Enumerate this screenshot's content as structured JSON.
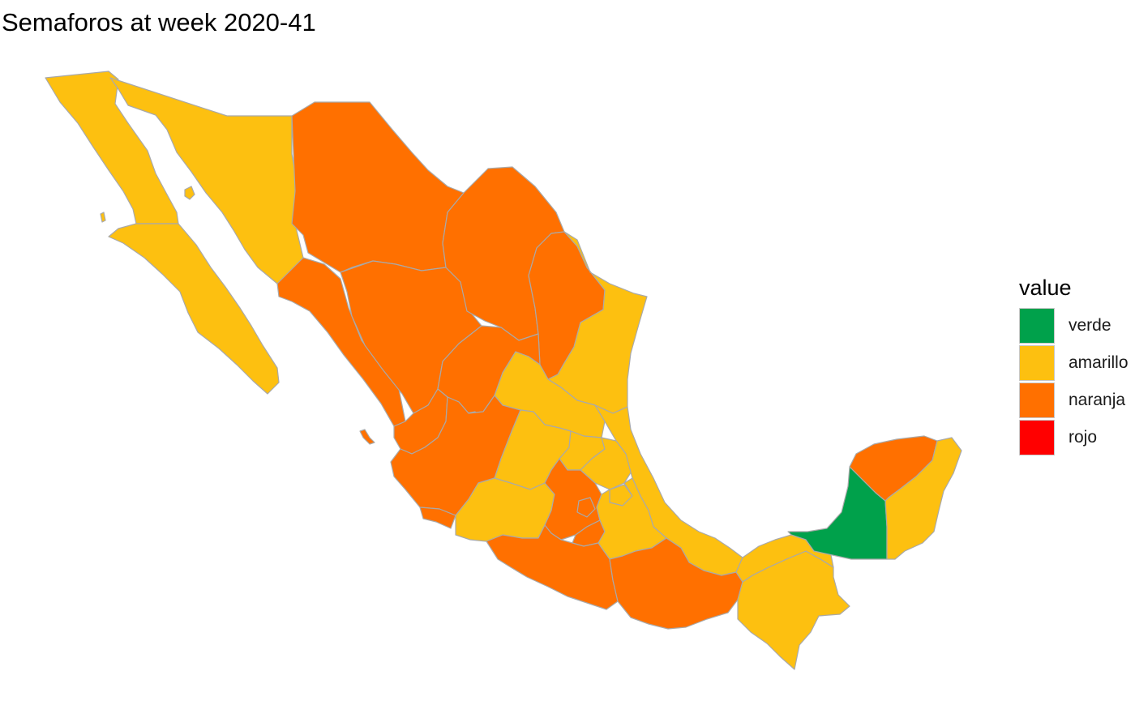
{
  "title": "Semaforos at week 2020-41",
  "legend": {
    "title": "value",
    "items": [
      {
        "key": "verde",
        "label": "verde",
        "color": "#00A14B"
      },
      {
        "key": "amarillo",
        "label": "amarillo",
        "color": "#FDC010"
      },
      {
        "key": "naranja",
        "label": "naranja",
        "color": "#FF7000"
      },
      {
        "key": "rojo",
        "label": "rojo",
        "color": "#FF0000"
      }
    ]
  },
  "states": [
    {
      "name": "Baja California",
      "value": "amarillo"
    },
    {
      "name": "Baja California Sur",
      "value": "amarillo"
    },
    {
      "name": "Sonora",
      "value": "amarillo"
    },
    {
      "name": "Chihuahua",
      "value": "naranja"
    },
    {
      "name": "Coahuila",
      "value": "naranja"
    },
    {
      "name": "Nuevo León",
      "value": "naranja"
    },
    {
      "name": "Tamaulipas",
      "value": "amarillo"
    },
    {
      "name": "Sinaloa",
      "value": "naranja"
    },
    {
      "name": "Durango",
      "value": "naranja"
    },
    {
      "name": "Zacatecas",
      "value": "naranja"
    },
    {
      "name": "Nayarit",
      "value": "naranja"
    },
    {
      "name": "Aguascalientes",
      "value": "naranja"
    },
    {
      "name": "Jalisco",
      "value": "naranja"
    },
    {
      "name": "San Luis Potosí",
      "value": "amarillo"
    },
    {
      "name": "Guanajuato",
      "value": "amarillo"
    },
    {
      "name": "Querétaro",
      "value": "amarillo"
    },
    {
      "name": "Hidalgo",
      "value": "amarillo"
    },
    {
      "name": "Veracruz",
      "value": "amarillo"
    },
    {
      "name": "Colima",
      "value": "naranja"
    },
    {
      "name": "Michoacán",
      "value": "amarillo"
    },
    {
      "name": "Estado de México",
      "value": "naranja"
    },
    {
      "name": "Ciudad de México",
      "value": "naranja"
    },
    {
      "name": "Morelos",
      "value": "naranja"
    },
    {
      "name": "Tlaxcala",
      "value": "amarillo"
    },
    {
      "name": "Puebla",
      "value": "amarillo"
    },
    {
      "name": "Guerrero",
      "value": "naranja"
    },
    {
      "name": "Oaxaca",
      "value": "naranja"
    },
    {
      "name": "Chiapas",
      "value": "amarillo"
    },
    {
      "name": "Tabasco",
      "value": "amarillo"
    },
    {
      "name": "Campeche",
      "value": "verde"
    },
    {
      "name": "Yucatán",
      "value": "naranja"
    },
    {
      "name": "Quintana Roo",
      "value": "amarillo"
    }
  ]
}
